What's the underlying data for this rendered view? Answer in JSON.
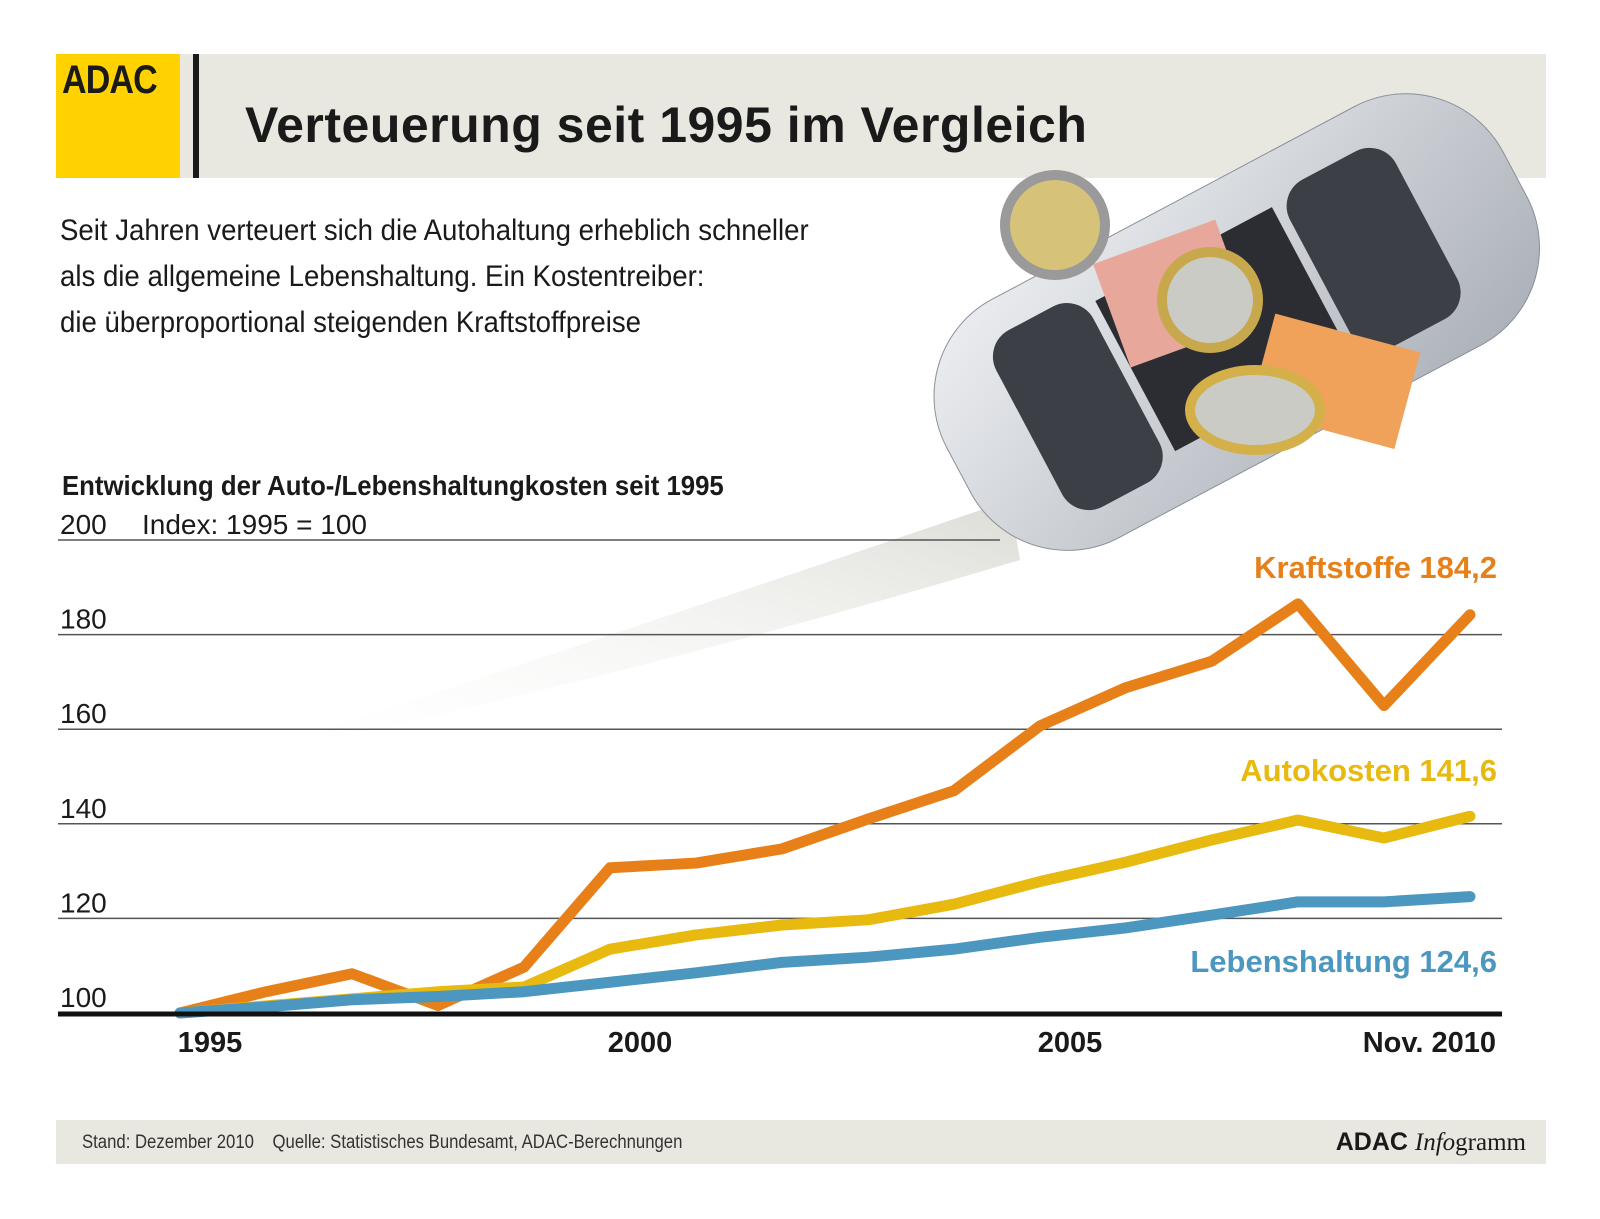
{
  "header": {
    "logo": "ADAC",
    "title": "Verteuerung seit 1995 im Vergleich"
  },
  "intro": [
    "Seit Jahren verteuert sich die Autohaltung erheblich schneller",
    "als die allgemeine Lebenshaltung. Ein Kostentreiber:",
    "die überproportional steigenden Kraftstoffpreise"
  ],
  "footer": {
    "stand": "Stand: Dezember 2010",
    "quelle": "Quelle: Statistisches Bundesamt, ADAC-Berechnungen",
    "brand_bold": "ADAC",
    "brand_italic": "Info",
    "brand_rest": "gramm"
  },
  "chart_data": {
    "type": "line",
    "title": "Entwicklung der Auto-/Lebenshaltungkosten seit 1995",
    "subtitle": "Index: 1995 = 100",
    "x": [
      1995,
      1996,
      1997,
      1998,
      1999,
      2000,
      2001,
      2002,
      2003,
      2004,
      2005,
      2006,
      2007,
      2008,
      2009,
      2010
    ],
    "xtick_labels": [
      {
        "x": 1995,
        "label": "1995"
      },
      {
        "x": 2000,
        "label": "2000"
      },
      {
        "x": 2005,
        "label": "2005"
      },
      {
        "x": 2010,
        "label": "Nov. 2010"
      }
    ],
    "yticks": [
      "100",
      "120",
      "140",
      "160",
      "180",
      "200"
    ],
    "ylim": [
      100,
      200
    ],
    "grid": true,
    "series": [
      {
        "name": "Kraftstoffe",
        "end_label": "184,2",
        "color": "#e8801a",
        "values": [
          100,
          104.5,
          108.3,
          101.6,
          109.7,
          130.7,
          131.7,
          134.7,
          141,
          147,
          160.7,
          168.8,
          174.4,
          186.5,
          165,
          184.2
        ]
      },
      {
        "name": "Autokosten",
        "end_label": "141,6",
        "color": "#e8b90f",
        "values": [
          100,
          101.5,
          103,
          104.5,
          105.5,
          113.5,
          116.5,
          118.6,
          119.7,
          123,
          127.8,
          131.9,
          136.6,
          140.8,
          137,
          141.6
        ]
      },
      {
        "name": "Lebenshaltung",
        "end_label": "124,6",
        "color": "#4b97bf",
        "values": [
          100,
          101.3,
          102.8,
          103.5,
          104.5,
          106.5,
          108.5,
          110.7,
          111.8,
          113.5,
          116,
          118,
          120.7,
          123.5,
          123.5,
          124.6
        ]
      }
    ]
  }
}
